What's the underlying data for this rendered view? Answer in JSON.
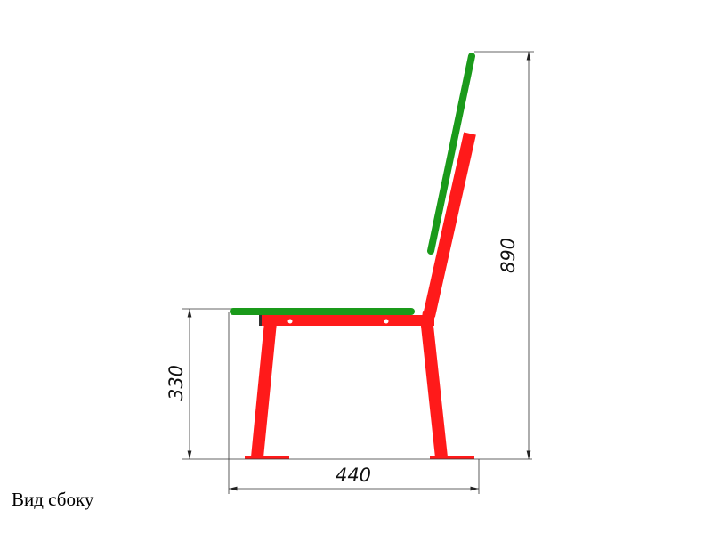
{
  "drawing": {
    "dimensions": {
      "seat_height": "330",
      "depth": "440",
      "total_height": "890"
    },
    "colors": {
      "frame": "#ff1a1a",
      "wood": "#1a9a1a",
      "dimension_lines": "#333333"
    }
  },
  "caption": "Вид сбоку"
}
